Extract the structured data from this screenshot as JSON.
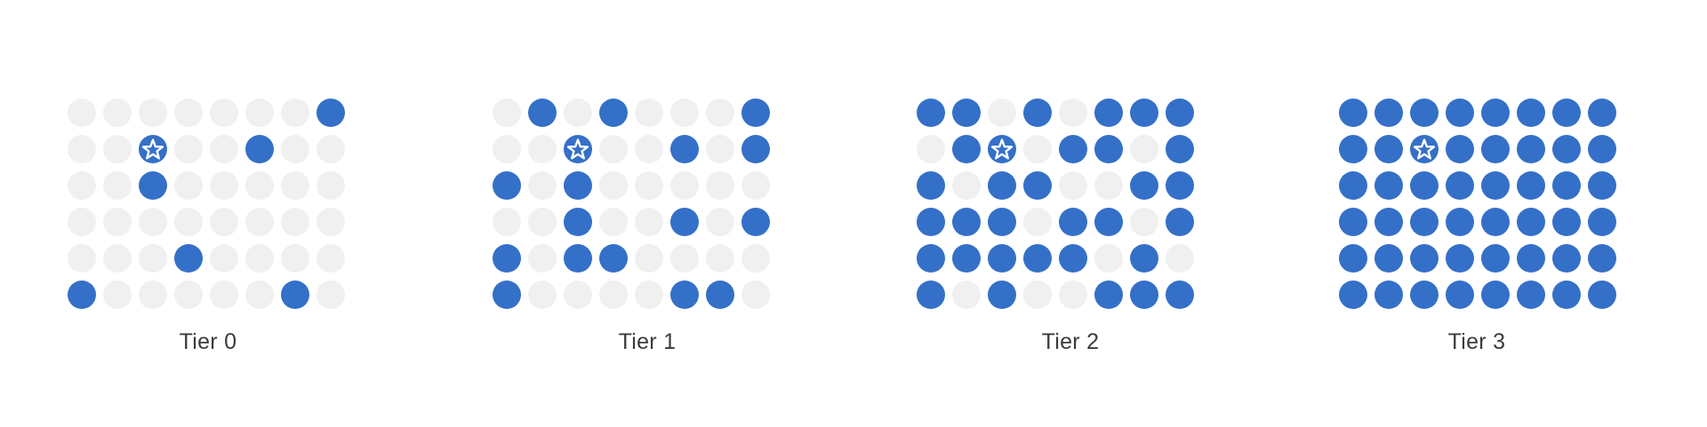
{
  "colors": {
    "filled": "#3470c8",
    "empty": "#f0f0f0",
    "star": "#ffffff"
  },
  "grid": {
    "rows": 6,
    "cols": 8
  },
  "marker_icon": "star-icon",
  "tiers": [
    {
      "label": "Tier 0",
      "marker": [
        1,
        2
      ],
      "cells": [
        [
          0,
          0,
          0,
          0,
          0,
          0,
          0,
          1
        ],
        [
          0,
          0,
          0,
          0,
          0,
          1,
          0,
          0
        ],
        [
          0,
          0,
          1,
          0,
          0,
          0,
          0,
          0
        ],
        [
          0,
          0,
          0,
          0,
          0,
          0,
          0,
          0
        ],
        [
          0,
          0,
          0,
          1,
          0,
          0,
          0,
          0
        ],
        [
          1,
          0,
          0,
          0,
          0,
          0,
          1,
          0
        ]
      ]
    },
    {
      "label": "Tier 1",
      "marker": [
        1,
        2
      ],
      "cells": [
        [
          0,
          1,
          0,
          1,
          0,
          0,
          0,
          1
        ],
        [
          0,
          0,
          0,
          0,
          0,
          1,
          0,
          1
        ],
        [
          1,
          0,
          1,
          0,
          0,
          0,
          0,
          0
        ],
        [
          0,
          0,
          1,
          0,
          0,
          1,
          0,
          1
        ],
        [
          1,
          0,
          1,
          1,
          0,
          0,
          0,
          0
        ],
        [
          1,
          0,
          0,
          0,
          0,
          1,
          1,
          0
        ]
      ]
    },
    {
      "label": "Tier 2",
      "marker": [
        1,
        2
      ],
      "cells": [
        [
          1,
          1,
          0,
          1,
          0,
          1,
          1,
          1
        ],
        [
          0,
          1,
          0,
          0,
          1,
          1,
          0,
          1
        ],
        [
          1,
          0,
          1,
          1,
          0,
          0,
          1,
          1
        ],
        [
          1,
          1,
          1,
          0,
          1,
          1,
          0,
          1
        ],
        [
          1,
          1,
          1,
          1,
          1,
          0,
          1,
          0
        ],
        [
          1,
          0,
          1,
          0,
          0,
          1,
          1,
          1
        ]
      ]
    },
    {
      "label": "Tier 3",
      "marker": [
        1,
        2
      ],
      "cells": [
        [
          1,
          1,
          1,
          1,
          1,
          1,
          1,
          1
        ],
        [
          1,
          1,
          1,
          1,
          1,
          1,
          1,
          1
        ],
        [
          1,
          1,
          1,
          1,
          1,
          1,
          1,
          1
        ],
        [
          1,
          1,
          1,
          1,
          1,
          1,
          1,
          1
        ],
        [
          1,
          1,
          1,
          1,
          1,
          1,
          1,
          1
        ],
        [
          1,
          1,
          1,
          1,
          1,
          1,
          1,
          1
        ]
      ]
    }
  ]
}
